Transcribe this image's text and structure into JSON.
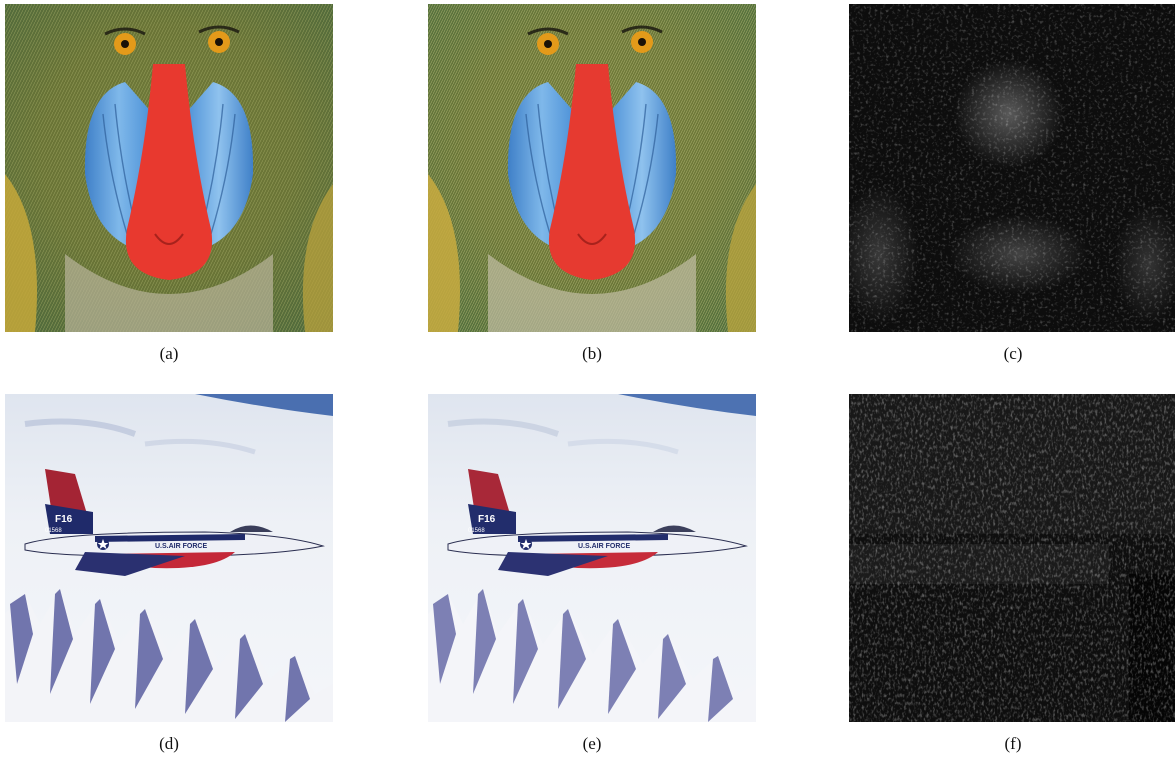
{
  "figure": {
    "panels": [
      {
        "caption": "(a)",
        "content": "baboon-original"
      },
      {
        "caption": "(b)",
        "content": "baboon-reconstructed"
      },
      {
        "caption": "(c)",
        "content": "baboon-difference-map"
      },
      {
        "caption": "(d)",
        "content": "jet-original"
      },
      {
        "caption": "(e)",
        "content": "jet-reconstructed"
      },
      {
        "caption": "(f)",
        "content": "jet-difference-map"
      }
    ],
    "jet_markings": {
      "tail_text": "F16",
      "serial": "01568",
      "fuselage_text": "U.S.AIR FORCE"
    }
  }
}
